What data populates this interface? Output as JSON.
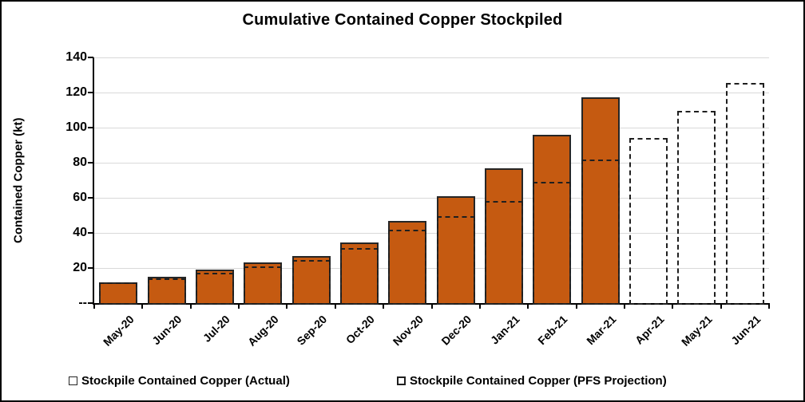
{
  "title": "Cumulative Contained Copper Stockpiled",
  "y_axis": {
    "label": "Contained Copper (kt)",
    "ticks": [
      {
        "value": 0,
        "label": "--"
      },
      {
        "value": 20,
        "label": "20"
      },
      {
        "value": 40,
        "label": "40"
      },
      {
        "value": 60,
        "label": "60"
      },
      {
        "value": 80,
        "label": "80"
      },
      {
        "value": 100,
        "label": "100"
      },
      {
        "value": 120,
        "label": "120"
      },
      {
        "value": 140,
        "label": "140"
      }
    ]
  },
  "legend": {
    "actual_label": "Stockpile Contained Copper (Actual)",
    "pfs_label": "Stockpile Contained Copper (PFS Projection)"
  },
  "colors": {
    "bar_fill": "#C55A11",
    "bar_border": "#262626",
    "dashed_line": "#1F1F1F",
    "gridline": "#D9D9D9",
    "axis": "#000000"
  },
  "chart_data": {
    "type": "bar",
    "title": "Cumulative Contained Copper Stockpiled",
    "xlabel": "",
    "ylabel": "Contained Copper (kt)",
    "ylim": [
      0,
      140
    ],
    "ytick_interval": 20,
    "grid": true,
    "legend_position": "bottom",
    "categories": [
      "May-20",
      "Jun-20",
      "Jul-20",
      "Aug-20",
      "Sep-20",
      "Oct-20",
      "Nov-20",
      "Dec-20",
      "Jan-21",
      "Feb-21",
      "Mar-21",
      "Apr-21",
      "May-21",
      "Jun-21"
    ],
    "series": [
      {
        "name": "Stockpile Contained Copper (Actual)",
        "style": "filled-bar",
        "color": "#C55A11",
        "values": [
          12,
          15,
          19,
          23,
          27,
          34.5,
          47,
          61,
          77,
          96,
          117.5,
          null,
          null,
          null
        ]
      },
      {
        "name": "Stockpile Contained Copper (PFS Projection)",
        "style": "dashed-outline-bar",
        "color": "#1F1F1F",
        "values": [
          12,
          14,
          17.5,
          21,
          24.5,
          31.5,
          42,
          49.5,
          58,
          69,
          82,
          94,
          109.5,
          125.5
        ]
      }
    ]
  }
}
